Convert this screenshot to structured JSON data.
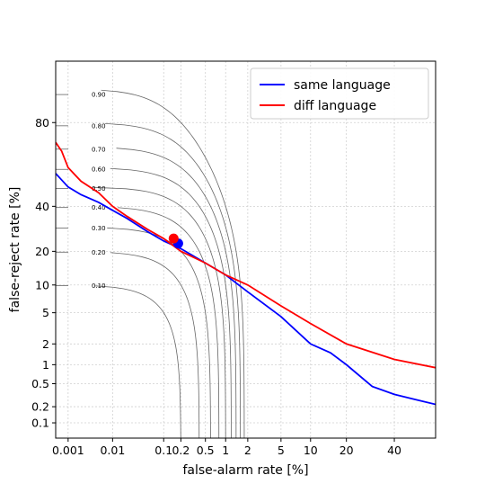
{
  "chart_data": {
    "type": "line",
    "xlabel": "false-alarm rate [%]",
    "ylabel": "false-reject rate [%]",
    "x_scale": "probit",
    "y_scale": "probit",
    "xlim": [
      0.0005,
      60
    ],
    "ylim": [
      0.05,
      95
    ],
    "x_ticks": [
      0.001,
      0.01,
      0.1,
      0.2,
      0.5,
      1,
      2,
      5,
      10,
      20,
      40
    ],
    "x_tick_labels": [
      "0.001",
      "0.01",
      "0.1",
      "0.2",
      "0.5",
      "1",
      "2",
      "5",
      "10",
      "20",
      "40"
    ],
    "y_ticks": [
      0.1,
      0.2,
      0.5,
      1,
      2,
      5,
      10,
      20,
      40,
      80
    ],
    "y_tick_labels": [
      "0.1",
      "0.2",
      "0.5",
      "1",
      "2",
      "5",
      "10",
      "20",
      "40",
      "80"
    ],
    "grid": true,
    "legend_position": "top-right",
    "series": [
      {
        "name": "same language",
        "color": "#0000ff",
        "x": [
          0.0005,
          0.001,
          0.002,
          0.005,
          0.01,
          0.02,
          0.05,
          0.1,
          0.2,
          0.5,
          1,
          2,
          5,
          10,
          15,
          20,
          30,
          40,
          50,
          60
        ],
        "y": [
          57,
          50,
          46,
          42,
          38,
          34,
          28,
          24,
          21,
          16,
          12.5,
          8.5,
          4.5,
          2,
          1.5,
          1,
          0.45,
          0.33,
          0.27,
          0.22
        ]
      },
      {
        "name": "diff language",
        "color": "#ff0000",
        "x": [
          0.0005,
          0.0007,
          0.001,
          0.002,
          0.005,
          0.01,
          0.02,
          0.05,
          0.1,
          0.2,
          0.5,
          1,
          2,
          5,
          10,
          20,
          40,
          60
        ],
        "y": [
          72,
          68,
          60,
          53,
          47,
          40,
          35,
          29,
          25,
          20,
          16,
          12.5,
          10,
          6,
          3.7,
          2,
          1.2,
          0.9
        ]
      }
    ],
    "operating_points": [
      {
        "series": "same language",
        "color": "#0000ff",
        "x": 0.18,
        "y": 23
      },
      {
        "series": "diff language",
        "color": "#ff0000",
        "x": 0.15,
        "y": 25
      }
    ],
    "contour_labels": [
      "0.90",
      "0.80",
      "0.70",
      "0.60",
      "0.50",
      "0.40",
      "0.30",
      "0.20",
      "0.10"
    ],
    "contour_values": [
      0.9,
      0.8,
      0.7,
      0.6,
      0.5,
      0.4,
      0.3,
      0.2,
      0.1
    ],
    "contour_color": "#666666",
    "grid_color": "#d0d0d0"
  }
}
